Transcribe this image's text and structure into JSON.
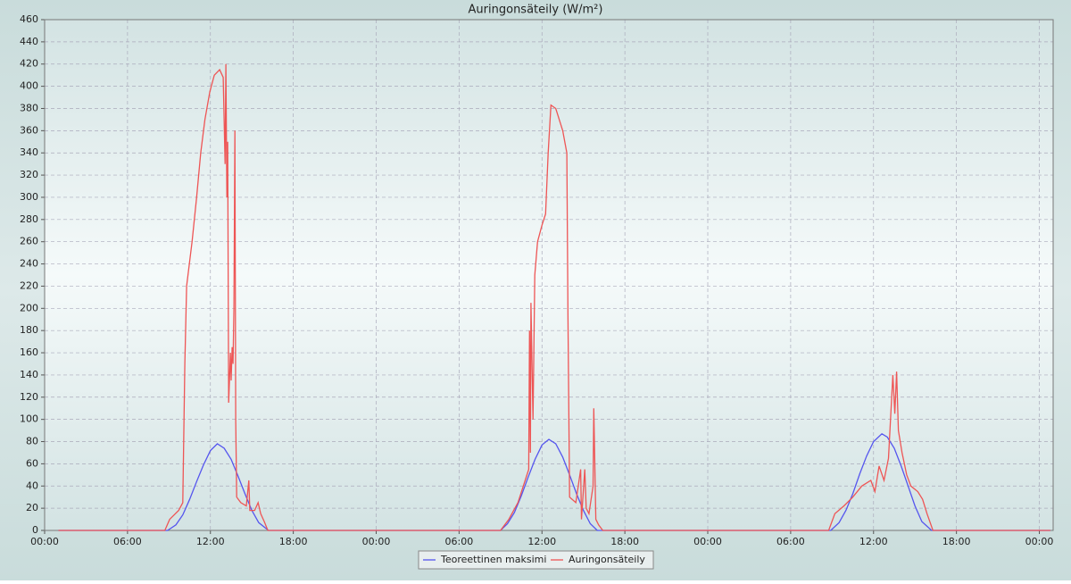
{
  "chart_data": {
    "type": "line",
    "title": "Auringonsäteily (W/m²)",
    "xlim": [
      0,
      73
    ],
    "ylim": [
      0,
      460
    ],
    "xticks": [
      {
        "value": 0,
        "label": "00:00"
      },
      {
        "value": 6,
        "label": "06:00"
      },
      {
        "value": 12,
        "label": "12:00"
      },
      {
        "value": 18,
        "label": "18:00"
      },
      {
        "value": 24,
        "label": "00:00"
      },
      {
        "value": 30,
        "label": "06:00"
      },
      {
        "value": 36,
        "label": "12:00"
      },
      {
        "value": 42,
        "label": "18:00"
      },
      {
        "value": 48,
        "label": "00:00"
      },
      {
        "value": 54,
        "label": "06:00"
      },
      {
        "value": 60,
        "label": "12:00"
      },
      {
        "value": 66,
        "label": "18:00"
      },
      {
        "value": 72,
        "label": "00:00"
      }
    ],
    "yticks": [
      0,
      20,
      40,
      60,
      80,
      100,
      120,
      140,
      160,
      180,
      200,
      220,
      240,
      260,
      280,
      300,
      320,
      340,
      360,
      380,
      400,
      420,
      440,
      460
    ],
    "grid": true,
    "legend": "bottom",
    "series": [
      {
        "name": "Teoreettinen maksimi",
        "color": "#5555ee",
        "x": [
          1,
          8.9,
          9.5,
          10,
          10.5,
          11,
          11.5,
          12,
          12.5,
          13,
          13.5,
          14,
          14.5,
          15,
          15.5,
          16.2,
          33,
          33.5,
          34,
          34.5,
          35,
          35.5,
          36,
          36.5,
          37,
          37.5,
          38,
          38.5,
          39,
          39.5,
          40,
          56.9,
          57.5,
          58,
          58.5,
          59,
          59.5,
          60,
          60.6,
          61,
          61.5,
          62,
          62.5,
          63,
          63.5,
          64.2,
          72.8
        ],
        "values": [
          0,
          0,
          5,
          14,
          28,
          44,
          59,
          72,
          78,
          74,
          64,
          49,
          33,
          18,
          7,
          0,
          0,
          6,
          16,
          31,
          48,
          64,
          77,
          82,
          78,
          66,
          50,
          33,
          18,
          6,
          0,
          0,
          7,
          18,
          33,
          51,
          67,
          80,
          87,
          84,
          74,
          58,
          40,
          22,
          8,
          0,
          0
        ]
      },
      {
        "name": "Auringonsäteily",
        "color": "#ee5555",
        "x": [
          1,
          8.7,
          9.05,
          9.7,
          10.0,
          10.15,
          10.28,
          10.67,
          11.0,
          11.3,
          11.6,
          11.96,
          12.28,
          12.67,
          12.93,
          13.06,
          13.12,
          13.19,
          13.25,
          13.32,
          13.45,
          13.5,
          13.57,
          13.64,
          13.7,
          13.77,
          13.83,
          13.9,
          14.2,
          14.6,
          14.78,
          14.85,
          15.2,
          15.45,
          15.64,
          15.9,
          16.16,
          33.0,
          33.6,
          34.26,
          34.78,
          35.04,
          35.1,
          35.16,
          35.2,
          35.35,
          35.48,
          35.68,
          36.0,
          36.26,
          36.45,
          36.65,
          37.0,
          37.5,
          37.8,
          37.88,
          38.0,
          38.45,
          38.8,
          38.86,
          39.1,
          39.2,
          39.4,
          39.7,
          39.75,
          39.9,
          40.1,
          40.4,
          56.75,
          57.2,
          57.85,
          58.5,
          59.15,
          59.8,
          60.1,
          60.4,
          60.76,
          61.08,
          61.4,
          61.54,
          61.67,
          61.8,
          62.06,
          62.4,
          62.7,
          63.2,
          63.55,
          63.87,
          64.3,
          72.8
        ],
        "values": [
          0,
          0,
          10,
          18,
          25,
          150,
          220,
          260,
          300,
          340,
          370,
          395,
          410,
          415,
          408,
          330,
          420,
          300,
          350,
          115,
          160,
          135,
          165,
          150,
          200,
          360,
          100,
          30,
          25,
          22,
          45,
          18,
          18,
          25,
          15,
          8,
          0,
          0,
          10,
          25,
          45,
          55,
          180,
          70,
          205,
          100,
          230,
          260,
          275,
          285,
          340,
          383,
          380,
          360,
          340,
          190,
          30,
          25,
          55,
          10,
          55,
          20,
          15,
          40,
          110,
          10,
          5,
          0,
          0,
          15,
          22,
          30,
          40,
          45,
          35,
          58,
          45,
          65,
          140,
          105,
          143,
          90,
          70,
          50,
          40,
          35,
          28,
          15,
          0,
          0
        ]
      }
    ]
  }
}
